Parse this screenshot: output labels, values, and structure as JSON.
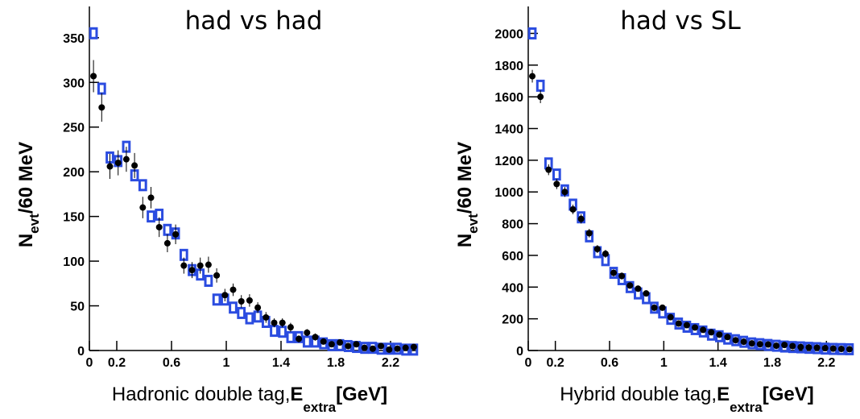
{
  "chart_data": [
    {
      "type": "scatter",
      "title": "had vs had",
      "xlabel": "Hadronic double tag,",
      "xlabel_symbol": "E",
      "xlabel_sub": "extra",
      "xlabel_unit": "[GeV]",
      "ylabel": "N",
      "ylabel_sub": "evt",
      "ylabel_unit": "/60 MeV",
      "xlim": [
        0,
        2.4
      ],
      "ylim": [
        0,
        385
      ],
      "xticks": [
        0,
        0.2,
        0.6,
        1,
        1.4,
        1.8,
        2.2
      ],
      "yticks": [
        0,
        50,
        100,
        150,
        200,
        250,
        300,
        350
      ],
      "x": [
        0.03,
        0.09,
        0.15,
        0.21,
        0.27,
        0.33,
        0.39,
        0.45,
        0.51,
        0.57,
        0.63,
        0.69,
        0.75,
        0.81,
        0.87,
        0.93,
        0.99,
        1.05,
        1.11,
        1.17,
        1.23,
        1.29,
        1.35,
        1.41,
        1.47,
        1.53,
        1.59,
        1.65,
        1.71,
        1.77,
        1.83,
        1.89,
        1.95,
        2.01,
        2.07,
        2.13,
        2.19,
        2.25,
        2.31,
        2.37
      ],
      "series": [
        {
          "color": "#2b4ce0",
          "marker": "square",
          "values": [
            355,
            293,
            216,
            212,
            228,
            196,
            185,
            150,
            152,
            135,
            131,
            107,
            90,
            85,
            78,
            57,
            57,
            48,
            42,
            36,
            38,
            32,
            22,
            21,
            15,
            15,
            10,
            10,
            8,
            6,
            6,
            5,
            4,
            3,
            3,
            2,
            2,
            2,
            1,
            1
          ]
        },
        {
          "color": "#000000",
          "marker": "circle",
          "values": [
            307,
            272,
            206,
            210,
            214,
            207,
            160,
            171,
            138,
            120,
            130,
            95,
            90,
            95,
            96,
            84,
            62,
            68,
            55,
            56,
            48,
            37,
            31,
            31,
            26,
            13,
            20,
            15,
            10,
            7,
            9,
            5,
            7,
            3,
            2,
            5,
            1,
            2,
            3,
            4
          ],
          "errors": [
            18,
            16,
            14,
            14,
            14,
            14,
            12,
            12,
            11,
            10,
            11,
            9,
            9,
            9,
            9,
            8,
            7,
            7,
            7,
            7,
            6,
            6,
            5,
            5,
            5,
            4,
            4,
            4,
            3,
            3,
            3,
            2,
            3,
            2,
            2,
            2,
            1,
            1,
            2,
            2
          ]
        }
      ]
    },
    {
      "type": "scatter",
      "title": "had vs SL",
      "xlabel": "Hybrid double tag,",
      "xlabel_symbol": "E",
      "xlabel_sub": "extra",
      "xlabel_unit": "[GeV]",
      "ylabel": "N",
      "ylabel_sub": "evt",
      "ylabel_unit": "/60 MeV",
      "xlim": [
        0,
        2.4
      ],
      "ylim": [
        0,
        2170
      ],
      "xticks": [
        0,
        0.2,
        0.6,
        1,
        1.4,
        1.8,
        2.2
      ],
      "yticks": [
        0,
        200,
        400,
        600,
        800,
        1000,
        1200,
        1400,
        1600,
        1800,
        2000
      ],
      "x": [
        0.03,
        0.09,
        0.15,
        0.21,
        0.27,
        0.33,
        0.39,
        0.45,
        0.51,
        0.57,
        0.63,
        0.69,
        0.75,
        0.81,
        0.87,
        0.93,
        0.99,
        1.05,
        1.11,
        1.17,
        1.23,
        1.29,
        1.35,
        1.41,
        1.47,
        1.53,
        1.59,
        1.65,
        1.71,
        1.77,
        1.83,
        1.89,
        1.95,
        2.01,
        2.07,
        2.13,
        2.19,
        2.25,
        2.31,
        2.37
      ],
      "series": [
        {
          "color": "#2b4ce0",
          "marker": "square",
          "values": [
            2000,
            1670,
            1180,
            1110,
            1010,
            920,
            840,
            720,
            620,
            570,
            490,
            450,
            400,
            360,
            330,
            270,
            240,
            200,
            170,
            150,
            135,
            120,
            100,
            90,
            75,
            65,
            55,
            45,
            40,
            35,
            30,
            25,
            22,
            20,
            17,
            15,
            12,
            10,
            9,
            8
          ]
        },
        {
          "color": "#000000",
          "marker": "circle",
          "values": [
            1730,
            1600,
            1140,
            1050,
            1000,
            890,
            830,
            740,
            640,
            610,
            490,
            470,
            410,
            390,
            360,
            270,
            270,
            210,
            170,
            160,
            145,
            130,
            115,
            100,
            85,
            65,
            55,
            45,
            40,
            38,
            30,
            35,
            28,
            22,
            20,
            18,
            15,
            12,
            10,
            8
          ],
          "errors": [
            40,
            40,
            34,
            32,
            31,
            30,
            29,
            27,
            25,
            25,
            22,
            22,
            20,
            20,
            19,
            16,
            16,
            15,
            13,
            13,
            12,
            11,
            11,
            10,
            9,
            8,
            7,
            7,
            6,
            6,
            5,
            6,
            5,
            5,
            4,
            4,
            4,
            3,
            3,
            3
          ]
        }
      ]
    }
  ]
}
